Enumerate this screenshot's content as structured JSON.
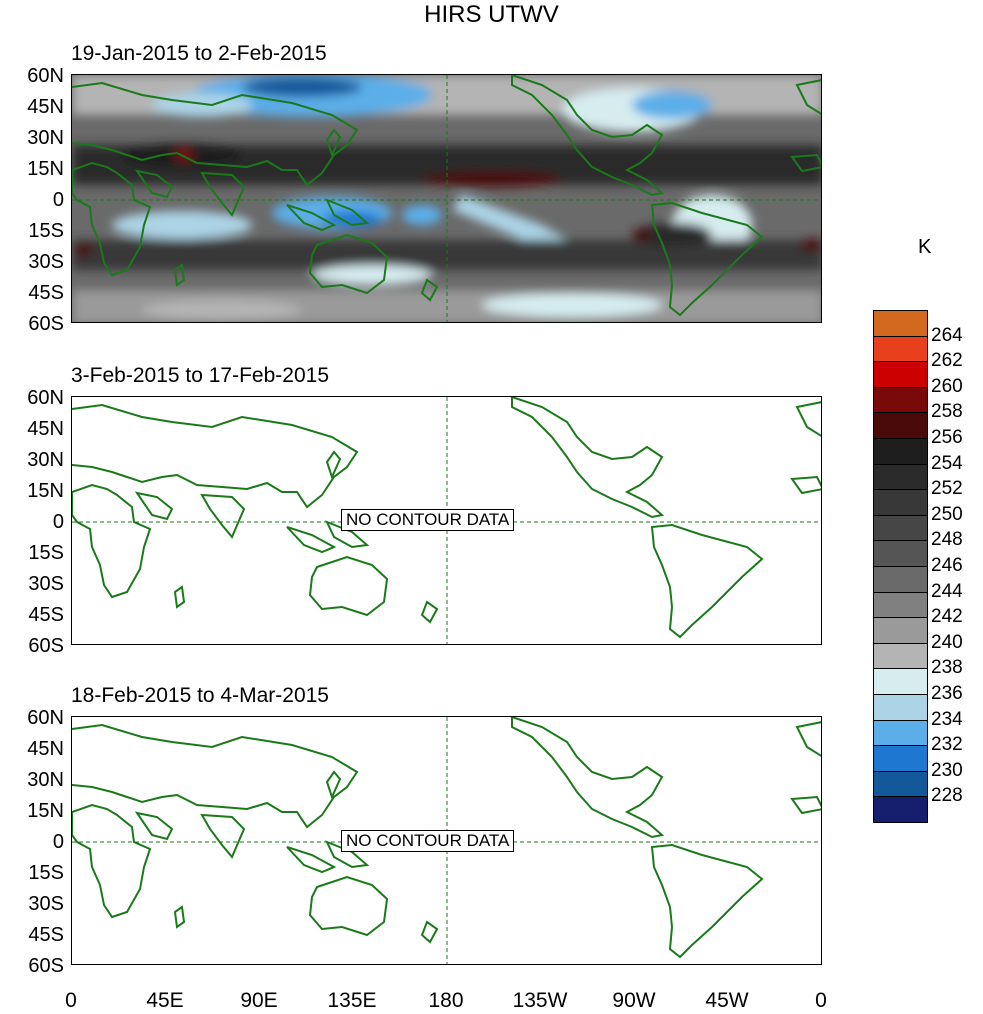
{
  "title": "HIRS UTWV",
  "units": "K",
  "panels": [
    {
      "period": "19-Jan-2015 to 2-Feb-2015",
      "has_data": true,
      "message": ""
    },
    {
      "period": "3-Feb-2015 to 17-Feb-2015",
      "has_data": false,
      "message": "NO CONTOUR DATA"
    },
    {
      "period": "18-Feb-2015 to 4-Mar-2015",
      "has_data": false,
      "message": "NO CONTOUR DATA"
    }
  ],
  "lat_labels": [
    "60N",
    "45N",
    "30N",
    "15N",
    "0",
    "15S",
    "30S",
    "45S",
    "60S"
  ],
  "lon_labels": [
    "0",
    "45E",
    "90E",
    "135E",
    "180",
    "135W",
    "90W",
    "45W",
    "0"
  ],
  "colorbar": {
    "levels": [
      "264",
      "262",
      "260",
      "258",
      "256",
      "254",
      "252",
      "250",
      "248",
      "246",
      "244",
      "242",
      "240",
      "238",
      "236",
      "234",
      "232",
      "230",
      "228"
    ],
    "colors": [
      "#d2691e",
      "#e8401c",
      "#cc0000",
      "#7a0a0a",
      "#4a0a0a",
      "#1e1e1e",
      "#2b2b2b",
      "#383838",
      "#464646",
      "#555555",
      "#6a6a6a",
      "#808080",
      "#9a9a9a",
      "#b4b4b4",
      "#d6ecef",
      "#acd4e6",
      "#5caee8",
      "#1e78d2",
      "#14589c",
      "#161e6e"
    ]
  },
  "style": {
    "coast_color": "#1a7a1a",
    "grid_color": "#1a7a1a"
  }
}
